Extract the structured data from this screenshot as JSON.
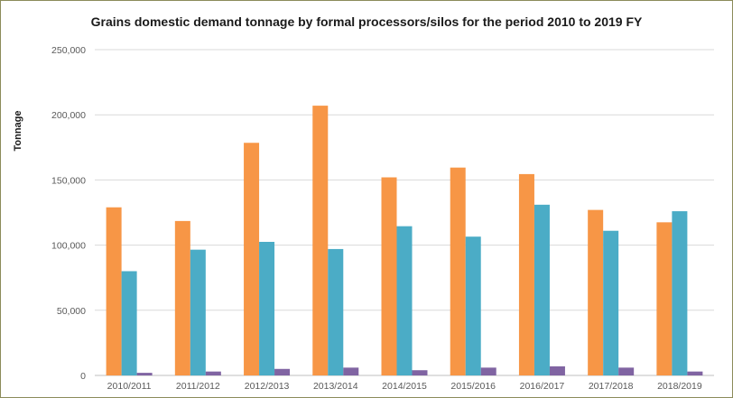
{
  "chart_data": {
    "type": "bar",
    "title": "Grains domestic demand tonnage by formal processors/silos for the period 2010 to 2019 FY",
    "xlabel": "",
    "ylabel": "Tonnage",
    "ylim": [
      0,
      250000
    ],
    "yticks": [
      0,
      50000,
      100000,
      150000,
      200000,
      250000
    ],
    "ytick_labels": [
      "0",
      "50,000",
      "100,000",
      "150,000",
      "200,000",
      "250,000"
    ],
    "grid": true,
    "legend": "none",
    "categories": [
      "2010/2011",
      "2011/2012",
      "2012/2013",
      "2013/2014",
      "2014/2015",
      "2015/2016",
      "2016/2017",
      "2017/2018",
      "2018/2019"
    ],
    "series": [
      {
        "color": "#f79646",
        "values": [
          129000,
          118500,
          178500,
          207000,
          152000,
          159500,
          154500,
          127000,
          117500
        ]
      },
      {
        "color": "#4bacc6",
        "values": [
          80000,
          96500,
          102500,
          97000,
          114500,
          106500,
          131000,
          111000,
          126000
        ]
      },
      {
        "color": "#8064a2",
        "values": [
          2000,
          3000,
          5000,
          6000,
          4000,
          6000,
          7000,
          6000,
          3000
        ]
      }
    ]
  }
}
